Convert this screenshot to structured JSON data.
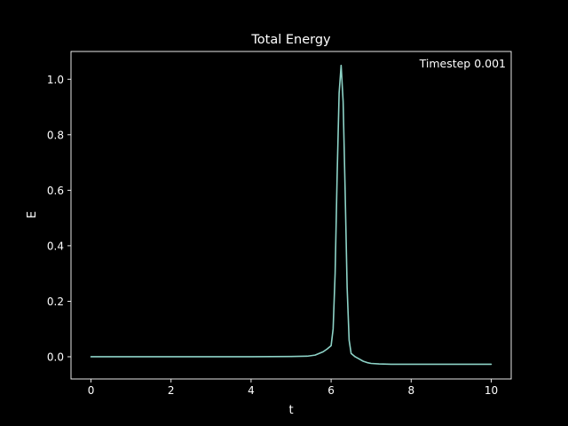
{
  "chart_data": {
    "type": "line",
    "title": "Total Energy",
    "xlabel": "t",
    "ylabel": "E",
    "xlim": [
      -0.5,
      10.5
    ],
    "ylim": [
      -0.08,
      1.1
    ],
    "xticks": [
      0,
      2,
      4,
      6,
      8,
      10
    ],
    "xtick_labels": [
      "0",
      "2",
      "4",
      "6",
      "8",
      "10"
    ],
    "yticks": [
      0.0,
      0.2,
      0.4,
      0.6,
      0.8,
      1.0
    ],
    "ytick_labels": [
      "0.0",
      "0.2",
      "0.4",
      "0.6",
      "0.8",
      "1.0"
    ],
    "annotation": "Timestep 0.001",
    "grid": false,
    "colors": {
      "background": "#000000",
      "axes": "#ffffff",
      "line": "#8dd3c7"
    },
    "series": [
      {
        "x": [
          0,
          1,
          2,
          3,
          4,
          5,
          5.4,
          5.6,
          5.8,
          5.9,
          6.0,
          6.05,
          6.1,
          6.15,
          6.2,
          6.25,
          6.3,
          6.35,
          6.4,
          6.45,
          6.5,
          6.55,
          6.6,
          6.7,
          6.8,
          6.9,
          7.0,
          7.2,
          7.5,
          8.0,
          9.0,
          10.0
        ],
        "y": [
          0.0,
          0.0,
          0.0,
          0.0,
          0.0,
          0.001,
          0.002,
          0.006,
          0.018,
          0.028,
          0.04,
          0.1,
          0.3,
          0.65,
          0.95,
          1.05,
          0.92,
          0.6,
          0.25,
          0.06,
          0.012,
          0.006,
          0.0,
          -0.008,
          -0.016,
          -0.021,
          -0.024,
          -0.026,
          -0.027,
          -0.027,
          -0.027,
          -0.027
        ]
      }
    ]
  }
}
